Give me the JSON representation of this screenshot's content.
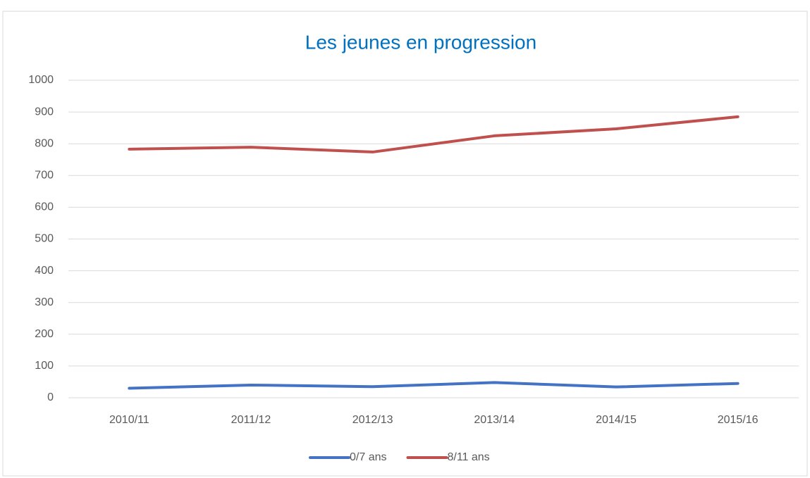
{
  "chart_data": {
    "type": "line",
    "title": "Les jeunes en progression",
    "categories": [
      "2010/11",
      "2011/12",
      "2012/13",
      "2013/14",
      "2014/15",
      "2015/16"
    ],
    "series": [
      {
        "name": "0/7 ans",
        "color": "#4472c4",
        "values": [
          30,
          40,
          35,
          48,
          34,
          45
        ]
      },
      {
        "name": "8/11 ans",
        "color": "#c0504d",
        "values": [
          783,
          789,
          774,
          825,
          847,
          885
        ]
      }
    ],
    "ylim": [
      0,
      1000
    ],
    "yticks": [
      0,
      100,
      200,
      300,
      400,
      500,
      600,
      700,
      800,
      900,
      1000
    ],
    "grid": true,
    "legend": "bottom"
  }
}
